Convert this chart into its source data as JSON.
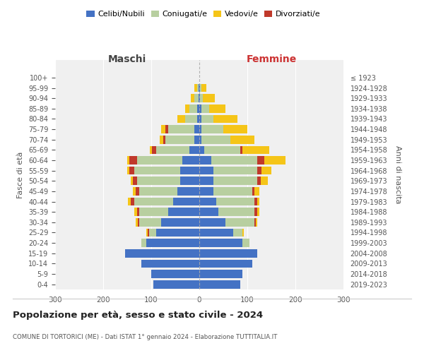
{
  "age_groups": [
    "0-4",
    "5-9",
    "10-14",
    "15-19",
    "20-24",
    "25-29",
    "30-34",
    "35-39",
    "40-44",
    "45-49",
    "50-54",
    "55-59",
    "60-64",
    "65-69",
    "70-74",
    "75-79",
    "80-84",
    "85-89",
    "90-94",
    "95-99",
    "100+"
  ],
  "birth_years": [
    "2019-2023",
    "2014-2018",
    "2009-2013",
    "2004-2008",
    "1999-2003",
    "1994-1998",
    "1989-1993",
    "1984-1988",
    "1979-1983",
    "1974-1978",
    "1969-1973",
    "1964-1968",
    "1959-1963",
    "1954-1958",
    "1949-1953",
    "1944-1948",
    "1939-1943",
    "1934-1938",
    "1929-1933",
    "1924-1928",
    "≤ 1923"
  ],
  "maschi": {
    "celibi": [
      95,
      100,
      120,
      155,
      110,
      90,
      80,
      65,
      55,
      45,
      40,
      40,
      35,
      20,
      10,
      10,
      5,
      5,
      2,
      2,
      0
    ],
    "coniugati": [
      0,
      0,
      0,
      0,
      10,
      15,
      45,
      60,
      80,
      80,
      90,
      95,
      95,
      70,
      60,
      55,
      25,
      15,
      8,
      3,
      0
    ],
    "vedovi": [
      0,
      0,
      0,
      0,
      0,
      3,
      5,
      5,
      5,
      5,
      5,
      5,
      5,
      5,
      8,
      10,
      15,
      10,
      8,
      5,
      0
    ],
    "divorziati": [
      0,
      0,
      0,
      0,
      0,
      2,
      3,
      5,
      8,
      8,
      8,
      10,
      15,
      8,
      5,
      5,
      0,
      0,
      0,
      0,
      0
    ]
  },
  "femmine": {
    "nubili": [
      85,
      90,
      110,
      120,
      90,
      70,
      55,
      40,
      35,
      30,
      30,
      30,
      25,
      10,
      5,
      5,
      5,
      5,
      2,
      2,
      0
    ],
    "coniugate": [
      0,
      0,
      0,
      0,
      15,
      20,
      60,
      75,
      80,
      80,
      90,
      90,
      95,
      75,
      60,
      45,
      25,
      15,
      5,
      3,
      0
    ],
    "vedove": [
      0,
      0,
      0,
      0,
      0,
      3,
      3,
      5,
      5,
      10,
      15,
      20,
      45,
      55,
      50,
      50,
      50,
      35,
      25,
      10,
      0
    ],
    "divorziate": [
      0,
      0,
      0,
      0,
      0,
      0,
      3,
      5,
      5,
      5,
      8,
      10,
      15,
      5,
      0,
      0,
      0,
      0,
      0,
      0,
      0
    ]
  },
  "colors": {
    "celibi_nubili": "#4472c4",
    "coniugati": "#b8cfa0",
    "vedovi": "#f5c518",
    "divorziati": "#c0392b"
  },
  "title": "Popolazione per età, sesso e stato civile - 2024",
  "subtitle": "COMUNE DI TORTORICI (ME) - Dati ISTAT 1° gennaio 2024 - Elaborazione TUTTITALIA.IT",
  "xlabel_left": "Maschi",
  "xlabel_right": "Femmine",
  "ylabel_left": "Fasce di età",
  "ylabel_right": "Anni di nascita",
  "xlim": 300,
  "bg_color": "#ffffff",
  "plot_bg": "#f0f0f0"
}
